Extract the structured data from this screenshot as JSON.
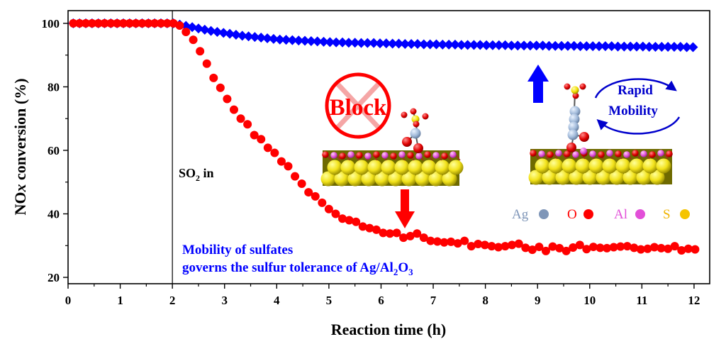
{
  "chart_data": {
    "type": "scatter",
    "xlabel": "Reaction time (h)",
    "ylabel_main": "NO",
    "ylabel_italic": "x",
    "ylabel_rest": " conversion (%)",
    "xlim": [
      0,
      12.3
    ],
    "ylim": [
      18,
      104
    ],
    "xticks": [
      0,
      1,
      2,
      3,
      4,
      5,
      6,
      7,
      8,
      9,
      10,
      11,
      12
    ],
    "yticks": [
      20,
      40,
      60,
      80,
      100
    ],
    "xtick_labels": [
      "0",
      "1",
      "2",
      "3",
      "4",
      "5",
      "6",
      "7",
      "8",
      "9",
      "10",
      "11",
      "12"
    ],
    "ytick_labels": [
      "20",
      "40",
      "60",
      "80",
      "100"
    ],
    "marker_line_x": 2,
    "series": [
      {
        "marker": "diamond",
        "color": "#0000ff",
        "x": [
          0.1,
          0.22,
          0.34,
          0.46,
          0.58,
          0.7,
          0.82,
          0.94,
          1.06,
          1.18,
          1.3,
          1.42,
          1.54,
          1.66,
          1.78,
          1.9,
          2.02,
          2.14,
          2.26,
          2.38,
          2.5,
          2.62,
          2.74,
          2.86,
          2.98,
          3.1,
          3.22,
          3.34,
          3.46,
          3.58,
          3.7,
          3.82,
          3.94,
          4.06,
          4.18,
          4.3,
          4.42,
          4.54,
          4.66,
          4.78,
          4.9,
          5.02,
          5.14,
          5.26,
          5.38,
          5.5,
          5.62,
          5.74,
          5.86,
          5.98,
          6.1,
          6.22,
          6.34,
          6.46,
          6.58,
          6.7,
          6.82,
          6.94,
          7.06,
          7.18,
          7.3,
          7.42,
          7.54,
          7.66,
          7.78,
          7.9,
          8.02,
          8.14,
          8.26,
          8.38,
          8.5,
          8.62,
          8.74,
          8.86,
          8.98,
          9.1,
          9.22,
          9.34,
          9.46,
          9.58,
          9.7,
          9.82,
          9.94,
          10.06,
          10.18,
          10.3,
          10.42,
          10.54,
          10.66,
          10.78,
          10.9,
          11.02,
          11.14,
          11.26,
          11.38,
          11.5,
          11.62,
          11.74,
          11.86,
          11.98
        ],
        "y": [
          100,
          100,
          100,
          100,
          100,
          100,
          100,
          100,
          100,
          100,
          100,
          100,
          100,
          100,
          100,
          100,
          100,
          99.6,
          99.2,
          98.8,
          98.4,
          98,
          97.6,
          97.3,
          97,
          96.7,
          96.4,
          96.1,
          95.9,
          95.7,
          95.5,
          95.3,
          95.1,
          94.9,
          94.8,
          94.7,
          94.6,
          94.5,
          94.4,
          94.3,
          94.2,
          94.1,
          94,
          94,
          93.9,
          93.9,
          93.8,
          93.8,
          93.8,
          93.7,
          93.7,
          93.6,
          93.6,
          93.5,
          93.5,
          93.5,
          93.4,
          93.4,
          93.4,
          93.3,
          93.3,
          93.3,
          93.2,
          93.2,
          93.2,
          93.2,
          93.1,
          93.1,
          93.1,
          93.1,
          93,
          93,
          93,
          93,
          93,
          93,
          92.9,
          92.9,
          92.9,
          92.9,
          92.9,
          92.8,
          92.8,
          92.8,
          92.8,
          92.8,
          92.8,
          92.7,
          92.7,
          92.7,
          92.7,
          92.7,
          92.6,
          92.6,
          92.6,
          92.6,
          92.6,
          92.6,
          92.5,
          92.5
        ]
      },
      {
        "marker": "circle",
        "color": "#ff0000",
        "x": [
          0.1,
          0.22,
          0.34,
          0.46,
          0.58,
          0.7,
          0.82,
          0.94,
          1.06,
          1.18,
          1.3,
          1.42,
          1.54,
          1.66,
          1.78,
          1.9,
          2.02,
          2.14,
          2.26,
          2.4,
          2.53,
          2.66,
          2.79,
          2.92,
          3.05,
          3.18,
          3.31,
          3.44,
          3.57,
          3.7,
          3.83,
          3.96,
          4.09,
          4.22,
          4.35,
          4.48,
          4.61,
          4.74,
          4.87,
          5.0,
          5.13,
          5.26,
          5.39,
          5.52,
          5.65,
          5.78,
          5.91,
          6.04,
          6.17,
          6.3,
          6.43,
          6.56,
          6.69,
          6.82,
          6.95,
          7.08,
          7.21,
          7.34,
          7.47,
          7.6,
          7.73,
          7.86,
          7.99,
          8.12,
          8.25,
          8.38,
          8.51,
          8.64,
          8.77,
          8.9,
          9.03,
          9.16,
          9.29,
          9.42,
          9.55,
          9.68,
          9.81,
          9.94,
          10.07,
          10.2,
          10.33,
          10.46,
          10.59,
          10.72,
          10.85,
          10.98,
          11.11,
          11.24,
          11.37,
          11.5,
          11.63,
          11.76,
          11.89,
          12.02
        ],
        "y": [
          100,
          100,
          100,
          100,
          100,
          100,
          100,
          100,
          100,
          100,
          100,
          100,
          100,
          100,
          100,
          100,
          100,
          99.3,
          97.3,
          94.8,
          91.2,
          87.3,
          82.8,
          79.7,
          76.2,
          72.8,
          70,
          68.2,
          64.8,
          63.5,
          60.8,
          59.2,
          56.5,
          55,
          51.8,
          49.5,
          46.8,
          45.5,
          43.5,
          41.5,
          40,
          38.5,
          38,
          37.5,
          36,
          35.5,
          35,
          34,
          33.8,
          34,
          32.5,
          33,
          33.8,
          32.5,
          31.5,
          31.3,
          31,
          31.2,
          30.7,
          31.5,
          29.8,
          30.5,
          30.2,
          29.8,
          29.5,
          29.8,
          30.2,
          30.6,
          29.3,
          28.7,
          29.6,
          28.3,
          29.7,
          29.2,
          28.3,
          29.4,
          30.2,
          28.9,
          29.6,
          29.3,
          29.2,
          29.5,
          29.7,
          29.8,
          29.3,
          28.8,
          29,
          29.5,
          29.2,
          29,
          29.8,
          28.5,
          29,
          28.8
        ]
      }
    ],
    "annotations": {
      "so2_main": "SO",
      "so2_sub": "2",
      "so2_rest": " in",
      "caption_line1": "Mobility of sulfates",
      "caption_line2_main": "governs the sulfur tolerance of Ag/Al",
      "caption_sub_a": "2",
      "caption_o": "O",
      "caption_sub_b": "3",
      "block_label": "Block",
      "rapid_line1": "Rapid",
      "rapid_line2": "Mobility"
    },
    "legend": [
      {
        "label": "Ag",
        "color": "#7f96b8"
      },
      {
        "label": "O",
        "color": "#ff0000"
      },
      {
        "label": "Al",
        "color": "#e24fd8"
      },
      {
        "label": "S",
        "color": "#f5c400"
      }
    ]
  }
}
